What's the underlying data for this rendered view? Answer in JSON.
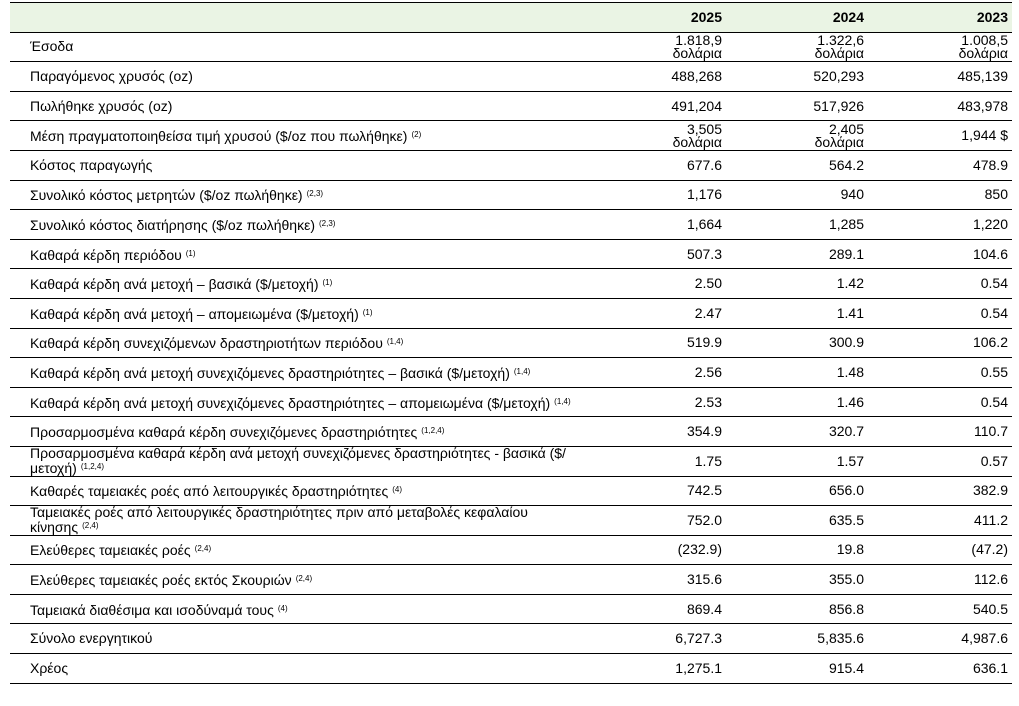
{
  "table": {
    "columns": [
      "2025",
      "2024",
      "2023"
    ],
    "rows": [
      {
        "label": "Έσοδα",
        "values": [
          "1.818,9 δολάρια",
          "1.322,6 δολάρια",
          "1.008,5 δολάρια"
        ]
      },
      {
        "label": "Παραγόμενος χρυσός (oz)",
        "values": [
          "488,268",
          "520,293",
          "485,139"
        ]
      },
      {
        "label": "Πωλήθηκε χρυσός (oz)",
        "values": [
          "491,204",
          "517,926",
          "483,978"
        ]
      },
      {
        "label": "Μέση πραγματοποιηθείσα τιμή χρυσού ($/oz που πωλήθηκε)",
        "note": "(2)",
        "values": [
          "3,505 δολάρια",
          "2,405 δολάρια",
          "1,944 $"
        ]
      },
      {
        "label": "Κόστος παραγωγής",
        "values": [
          "677.6",
          "564.2",
          "478.9"
        ]
      },
      {
        "label": "Συνολικό κόστος μετρητών ($/oz πωλήθηκε)",
        "note": "(2,3)",
        "values": [
          "1,176",
          "940",
          "850"
        ]
      },
      {
        "label": "Συνολικό κόστος διατήρησης ($/oz πωλήθηκε)",
        "note": "(2,3)",
        "values": [
          "1,664",
          "1,285",
          "1,220"
        ]
      },
      {
        "label": "Καθαρά κέρδη περιόδου",
        "note": "(1)",
        "values": [
          "507.3",
          "289.1",
          "104.6"
        ]
      },
      {
        "label": "Καθαρά κέρδη ανά μετοχή – βασικά ($/μετοχή)",
        "note": "(1)",
        "values": [
          "2.50",
          "1.42",
          "0.54"
        ]
      },
      {
        "label": "Καθαρά κέρδη ανά μετοχή – απομειωμένα ($/μετοχή)",
        "note": "(1)",
        "values": [
          "2.47",
          "1.41",
          "0.54"
        ]
      },
      {
        "label": "Καθαρά κέρδη συνεχιζόμενων δραστηριοτήτων περιόδου",
        "note": "(1,4)",
        "values": [
          "519.9",
          "300.9",
          "106.2"
        ]
      },
      {
        "label": "Καθαρά κέρδη ανά μετοχή συνεχιζόμενες δραστηριότητες – βασικά ($/μετοχή)",
        "note": "(1,4)",
        "values": [
          "2.56",
          "1.48",
          "0.55"
        ]
      },
      {
        "label": "Καθαρά κέρδη ανά μετοχή συνεχιζόμενες δραστηριότητες – απομειωμένα ($/μετοχή)",
        "note": "(1,4)",
        "values": [
          "2.53",
          "1.46",
          "0.54"
        ]
      },
      {
        "label": "Προσαρμοσμένα καθαρά κέρδη συνεχιζόμενες δραστηριότητες",
        "note": "(1,2,4)",
        "values": [
          "354.9",
          "320.7",
          "110.7"
        ]
      },
      {
        "label": "Προσαρμοσμένα καθαρά κέρδη ανά μετοχή συνεχιζόμενες δραστηριότητες - βασικά ($/μετοχή)",
        "note": "(1,2,4)",
        "values": [
          "1.75",
          "1.57",
          "0.57"
        ]
      },
      {
        "label": "Καθαρές ταμειακές ροές από λειτουργικές δραστηριότητες",
        "note": "(4)",
        "values": [
          "742.5",
          "656.0",
          "382.9"
        ]
      },
      {
        "label": "Ταμειακές ροές από λειτουργικές δραστηριότητες πριν από μεταβολές κεφαλαίου κίνησης",
        "note": "(2,4)",
        "values": [
          "752.0",
          "635.5",
          "411.2"
        ]
      },
      {
        "label": "Ελεύθερες ταμειακές ροές",
        "note": "(2,4)",
        "values": [
          "(232.9)",
          "19.8",
          "(47.2)"
        ]
      },
      {
        "label": "Ελεύθερες ταμειακές ροές εκτός Σκουριών",
        "note": "(2,4)",
        "values": [
          "315.6",
          "355.0",
          "112.6"
        ]
      },
      {
        "label": "Ταμειακά διαθέσιμα και ισοδύναμά τους",
        "note": "(4)",
        "values": [
          "869.4",
          "856.8",
          "540.5"
        ]
      },
      {
        "label": "Σύνολο ενεργητικού",
        "values": [
          "6,727.3",
          "5,835.6",
          "4,987.6"
        ]
      },
      {
        "label": "Χρέος",
        "values": [
          "1,275.1",
          "915.4",
          "636.1"
        ]
      }
    ]
  }
}
